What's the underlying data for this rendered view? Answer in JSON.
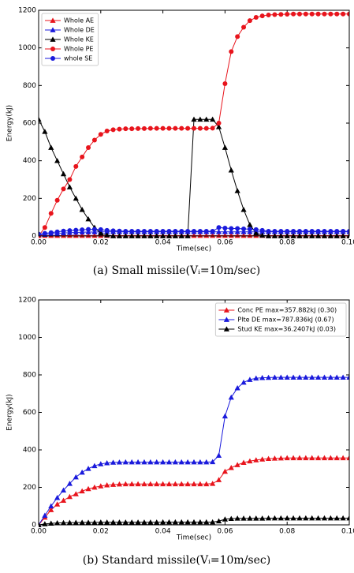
{
  "chart_data": [
    {
      "type": "line",
      "legend": "upper left",
      "xlabel": "Time(sec)",
      "ylabel": "Energy(kJ)",
      "caption": "(a) Small missile(Vᵢ=10m/sec)",
      "xlim": [
        0,
        0.1
      ],
      "xticks": [
        {
          "value": 0,
          "label": "0.00"
        },
        0.02,
        0.04,
        0.06,
        0.08,
        {
          "value": 0.1,
          "label": "0.10"
        }
      ],
      "ylim": [
        0,
        1200
      ],
      "yticks": [
        0,
        200,
        400,
        600,
        800,
        1000,
        1200
      ],
      "x": [
        0,
        0.002,
        0.004,
        0.006,
        0.008,
        0.01,
        0.012,
        0.014,
        0.016,
        0.018,
        0.02,
        0.022,
        0.024,
        0.026,
        0.028,
        0.03,
        0.032,
        0.034,
        0.036,
        0.038,
        0.04,
        0.042,
        0.044,
        0.046,
        0.048,
        0.05,
        0.052,
        0.054,
        0.056,
        0.058,
        0.06,
        0.062,
        0.064,
        0.066,
        0.068,
        0.07,
        0.072,
        0.074,
        0.076,
        0.078,
        0.08,
        0.082,
        0.084,
        0.086,
        0.088,
        0.09,
        0.092,
        0.094,
        0.096,
        0.098,
        0.1
      ],
      "series": [
        {
          "name": "Whole AE",
          "color": "#e8141c",
          "marker": "triangle",
          "values": [
            2,
            2,
            2,
            2,
            2,
            2,
            2,
            2,
            2,
            2,
            2,
            2,
            2,
            2,
            2,
            2,
            2,
            2,
            2,
            2,
            2,
            2,
            2,
            2,
            2,
            2,
            2,
            2,
            2,
            2,
            2,
            2,
            2,
            2,
            2,
            2,
            2,
            2,
            2,
            2,
            2,
            2,
            2,
            2,
            2,
            2,
            2,
            2,
            2,
            2,
            2
          ]
        },
        {
          "name": "Whole DE",
          "color": "#1a1adc",
          "marker": "triangle",
          "values": [
            5,
            8,
            11,
            14,
            16,
            18,
            19,
            20,
            21,
            21,
            22,
            22,
            22,
            22,
            22,
            22,
            22,
            22,
            22,
            22,
            22,
            22,
            22,
            22,
            22,
            22,
            22,
            22,
            22,
            22,
            22,
            22,
            22,
            22,
            22,
            22,
            22,
            22,
            22,
            22,
            22,
            22,
            22,
            22,
            22,
            22,
            22,
            22,
            22,
            22,
            22
          ]
        },
        {
          "name": "Whole KE",
          "color": "#000000",
          "marker": "triangle",
          "values": [
            620,
            555,
            470,
            400,
            330,
            260,
            200,
            140,
            90,
            45,
            15,
            5,
            0,
            0,
            0,
            0,
            0,
            0,
            0,
            0,
            0,
            0,
            0,
            0,
            0,
            620,
            620,
            620,
            620,
            580,
            470,
            350,
            240,
            140,
            60,
            15,
            3,
            0,
            0,
            0,
            0,
            0,
            0,
            0,
            0,
            0,
            0,
            0,
            0,
            0,
            0
          ]
        },
        {
          "name": "Whole PE",
          "color": "#e8141c",
          "marker": "circle",
          "values": [
            0,
            45,
            120,
            190,
            250,
            300,
            370,
            420,
            470,
            510,
            540,
            558,
            565,
            568,
            570,
            570,
            571,
            571,
            572,
            572,
            572,
            572,
            572,
            572,
            572,
            572,
            572,
            572,
            573,
            600,
            810,
            980,
            1060,
            1110,
            1145,
            1162,
            1170,
            1175,
            1177,
            1178,
            1179,
            1180,
            1180,
            1180,
            1180,
            1180,
            1180,
            1180,
            1180,
            1180,
            1180
          ]
        },
        {
          "name": "whole SE",
          "color": "#1a1adc",
          "marker": "circle",
          "values": [
            10,
            14,
            18,
            22,
            26,
            29,
            31,
            33,
            35,
            35,
            34,
            30,
            28,
            26,
            25,
            25,
            25,
            25,
            25,
            25,
            25,
            25,
            25,
            25,
            25,
            25,
            25,
            25,
            25,
            45,
            42,
            40,
            40,
            38,
            36,
            34,
            30,
            25,
            25,
            25,
            25,
            25,
            25,
            25,
            25,
            25,
            25,
            25,
            25,
            25,
            25
          ]
        }
      ]
    },
    {
      "type": "line",
      "legend": "upper right",
      "xlabel": "Time(sec)",
      "ylabel": "Energy(kJ)",
      "caption": "(b) Standard missile(Vᵢ=10m/sec)",
      "xlim": [
        0,
        0.1
      ],
      "xticks": [
        {
          "value": 0,
          "label": "0.00"
        },
        0.02,
        0.04,
        0.06,
        0.08,
        {
          "value": 0.1,
          "label": "0.10"
        }
      ],
      "ylim": [
        0,
        1200
      ],
      "yticks": [
        0,
        200,
        400,
        600,
        800,
        1000,
        1200
      ],
      "x": [
        0,
        0.002,
        0.004,
        0.006,
        0.008,
        0.01,
        0.012,
        0.014,
        0.016,
        0.018,
        0.02,
        0.022,
        0.024,
        0.026,
        0.028,
        0.03,
        0.032,
        0.034,
        0.036,
        0.038,
        0.04,
        0.042,
        0.044,
        0.046,
        0.048,
        0.05,
        0.052,
        0.054,
        0.056,
        0.058,
        0.06,
        0.062,
        0.064,
        0.066,
        0.068,
        0.07,
        0.072,
        0.074,
        0.076,
        0.078,
        0.08,
        0.082,
        0.084,
        0.086,
        0.088,
        0.09,
        0.092,
        0.094,
        0.096,
        0.098,
        0.1
      ],
      "series": [
        {
          "name": "Conc PE max=357.882kJ (0.30)",
          "color": "#e8141c",
          "marker": "triangle",
          "values": [
            0,
            40,
            80,
            110,
            130,
            150,
            165,
            180,
            192,
            200,
            207,
            212,
            215,
            217,
            218,
            218,
            218,
            218,
            218,
            218,
            218,
            218,
            218,
            218,
            218,
            218,
            218,
            218,
            220,
            240,
            285,
            305,
            320,
            332,
            340,
            346,
            350,
            353,
            355,
            356,
            357,
            357,
            357,
            357,
            357,
            357,
            357,
            357,
            357,
            357,
            357
          ]
        },
        {
          "name": "Plte DE max=787.836kJ (0.67)",
          "color": "#1a1adc",
          "marker": "triangle",
          "values": [
            0,
            50,
            100,
            145,
            185,
            220,
            255,
            280,
            300,
            315,
            325,
            330,
            333,
            334,
            335,
            335,
            335,
            335,
            335,
            335,
            335,
            335,
            335,
            335,
            335,
            335,
            335,
            335,
            336,
            370,
            580,
            680,
            730,
            760,
            775,
            782,
            785,
            786,
            787,
            787,
            787,
            787,
            787,
            787,
            787,
            787,
            787,
            787,
            787,
            787,
            787
          ]
        },
        {
          "name": "Stud KE max=36.2407kJ (0.03)",
          "color": "#000000",
          "marker": "triangle",
          "values": [
            0,
            5,
            8,
            10,
            11,
            12,
            12,
            13,
            13,
            13,
            14,
            14,
            14,
            14,
            14,
            14,
            14,
            14,
            14,
            14,
            15,
            15,
            15,
            15,
            15,
            15,
            15,
            15,
            15,
            20,
            30,
            33,
            35,
            35,
            35,
            35,
            35,
            36,
            36,
            36,
            36,
            36,
            36,
            36,
            36,
            36,
            36,
            36,
            36,
            36,
            36
          ]
        }
      ]
    }
  ]
}
